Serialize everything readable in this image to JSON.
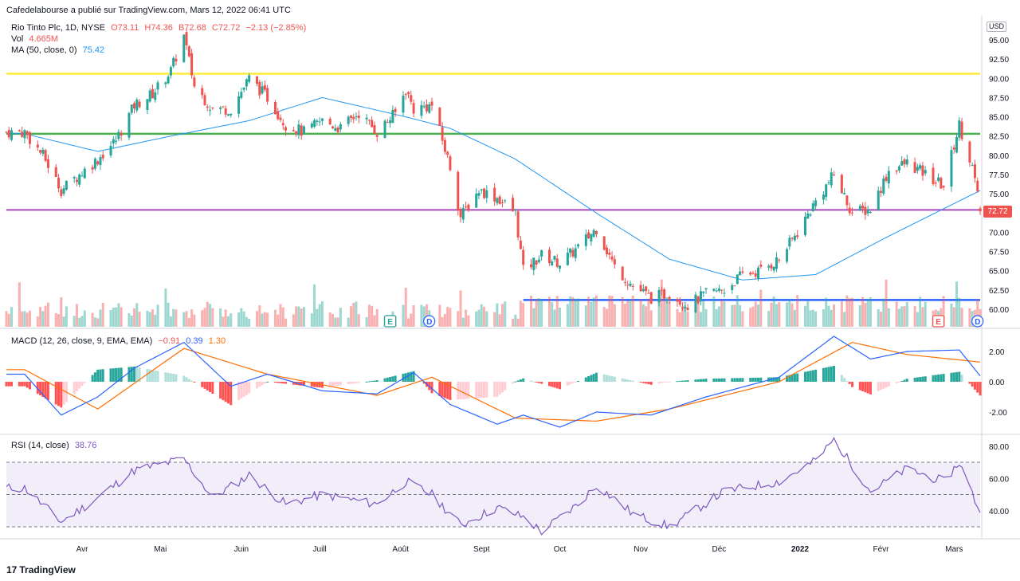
{
  "publisher_line": "Cafedelabourse a publié sur TradingView.com, Mars 12, 2022 06:41 UTC",
  "symbol": {
    "name": "Rio Tinto Plc, 1D, NYSE",
    "open": "O73.11",
    "high": "H74.36",
    "low": "B72.68",
    "close": "C72.72",
    "change": "−2.13 (−2.85%)"
  },
  "volume_legend": {
    "label": "Vol",
    "value": "4.665M"
  },
  "ma_legend": {
    "label": "MA (50, close, 0)",
    "value": "75.42"
  },
  "macd_legend": {
    "label": "MACD (12, 26, close, 9, EMA, EMA)",
    "hist": "−0.91",
    "macd": "0.39",
    "signal": "1.30"
  },
  "rsi_legend": {
    "label": "RSI (14, close)",
    "value": "38.76"
  },
  "currency": "USD",
  "last_price": "72.72",
  "brand": "TradingView",
  "colors": {
    "up": "#26a69a",
    "down": "#ef5350",
    "ma": "#2196f3",
    "macd": "#2962ff",
    "signal": "#ff6d00",
    "rsi": "#7e57c2",
    "yellow_line": "#ffeb3b",
    "green_line": "#4caf50",
    "purple_line": "#ab47bc",
    "blue_line": "#2962ff"
  },
  "chart_data": [
    {
      "type": "candlestick",
      "title": "Rio Tinto Plc, 1D, NYSE",
      "x_tick_labels": [
        "Avr",
        "Mai",
        "Juin",
        "Juill",
        "Août",
        "Sept",
        "Oct",
        "Nov",
        "Déc",
        "2022",
        "Févr",
        "Mars"
      ],
      "y_tick_labels": [
        60.0,
        62.5,
        65.0,
        67.5,
        70.0,
        72.5,
        75.0,
        77.5,
        80.0,
        82.5,
        85.0,
        87.5,
        90.0,
        92.5,
        95.0
      ],
      "ylim": [
        57.5,
        97.5
      ],
      "close_path": [
        [
          "2021-03-10",
          83
        ],
        [
          "2021-03-17",
          80
        ],
        [
          "2021-03-24",
          75.5
        ],
        [
          "2021-03-31",
          77.5
        ],
        [
          "2021-04-07",
          79.5
        ],
        [
          "2021-04-14",
          82
        ],
        [
          "2021-04-21",
          86.5
        ],
        [
          "2021-04-28",
          88
        ],
        [
          "2021-05-05",
          91
        ],
        [
          "2021-05-10",
          95.5
        ],
        [
          "2021-05-14",
          89
        ],
        [
          "2021-05-21",
          86
        ],
        [
          "2021-05-28",
          86
        ],
        [
          "2021-06-04",
          90
        ],
        [
          "2021-06-11",
          87.5
        ],
        [
          "2021-06-18",
          84
        ],
        [
          "2021-06-25",
          83
        ],
        [
          "2021-07-02",
          84.5
        ],
        [
          "2021-07-09",
          83.5
        ],
        [
          "2021-07-16",
          85.5
        ],
        [
          "2021-07-23",
          83
        ],
        [
          "2021-07-30",
          85.5
        ],
        [
          "2021-08-03",
          88.5
        ],
        [
          "2021-08-06",
          86
        ],
        [
          "2021-08-13",
          86.5
        ],
        [
          "2021-08-20",
          78.5
        ],
        [
          "2021-08-24",
          72
        ],
        [
          "2021-08-31",
          75.5
        ],
        [
          "2021-09-07",
          74.5
        ],
        [
          "2021-09-14",
          72.5
        ],
        [
          "2021-09-17",
          65
        ],
        [
          "2021-09-24",
          67
        ],
        [
          "2021-10-01",
          66
        ],
        [
          "2021-10-08",
          68
        ],
        [
          "2021-10-15",
          70.5
        ],
        [
          "2021-10-22",
          65.5
        ],
        [
          "2021-10-29",
          63
        ],
        [
          "2021-11-05",
          61.5
        ],
        [
          "2021-11-12",
          62
        ],
        [
          "2021-11-19",
          60.5
        ],
        [
          "2021-11-26",
          62
        ],
        [
          "2021-12-03",
          62.5
        ],
        [
          "2021-12-10",
          64.5
        ],
        [
          "2021-12-17",
          65
        ],
        [
          "2021-12-24",
          66.5
        ],
        [
          "2021-12-31",
          70
        ],
        [
          "2022-01-07",
          74
        ],
        [
          "2022-01-14",
          77.5
        ],
        [
          "2022-01-21",
          72.5
        ],
        [
          "2022-01-28",
          73
        ],
        [
          "2022-02-04",
          78
        ],
        [
          "2022-02-11",
          79
        ],
        [
          "2022-02-18",
          77.5
        ],
        [
          "2022-02-25",
          76
        ],
        [
          "2022-03-03",
          84
        ],
        [
          "2022-03-08",
          78.5
        ],
        [
          "2022-03-11",
          72.72
        ]
      ],
      "moving_average_50": [
        [
          "2021-03-10",
          82.8
        ],
        [
          "2021-04-07",
          80.5
        ],
        [
          "2021-05-05",
          82.5
        ],
        [
          "2021-06-04",
          84.5
        ],
        [
          "2021-07-02",
          87.5
        ],
        [
          "2021-08-03",
          85
        ],
        [
          "2021-08-20",
          83.5
        ],
        [
          "2021-09-14",
          79.5
        ],
        [
          "2021-10-15",
          72.5
        ],
        [
          "2021-11-12",
          66.5
        ],
        [
          "2021-12-10",
          63.8
        ],
        [
          "2022-01-07",
          64.5
        ],
        [
          "2022-02-04",
          69.5
        ],
        [
          "2022-03-11",
          75.42
        ]
      ],
      "horizontal_levels": [
        {
          "value": 90.6
        },
        {
          "value": 82.8
        },
        {
          "value": 72.9
        },
        {
          "value": 61.2,
          "from": "2021-09-17"
        }
      ],
      "event_markers": [
        {
          "label": "E",
          "date": "2021-07-28"
        },
        {
          "label": "D",
          "date": "2021-08-12"
        },
        {
          "label": "E",
          "date": "2022-02-23"
        },
        {
          "label": "D",
          "date": "2022-03-10"
        }
      ],
      "volume_last": "4.665M"
    },
    {
      "type": "line",
      "title": "MACD (12, 26, close, 9, EMA, EMA)",
      "y_tick_labels": [
        2.0,
        0.0,
        -2.0
      ],
      "series": [
        {
          "name": "MACD",
          "values": [
            [
              "2021-03-10",
              0.5
            ],
            [
              "2021-03-24",
              -2.2
            ],
            [
              "2021-04-07",
              -1.0
            ],
            [
              "2021-04-21",
              0.9
            ],
            [
              "2021-05-10",
              2.6
            ],
            [
              "2021-05-28",
              -0.3
            ],
            [
              "2021-06-11",
              0.5
            ],
            [
              "2021-07-02",
              -0.6
            ],
            [
              "2021-07-23",
              -0.8
            ],
            [
              "2021-08-06",
              0.6
            ],
            [
              "2021-08-20",
              -1.5
            ],
            [
              "2021-09-07",
              -2.8
            ],
            [
              "2021-09-17",
              -2.2
            ],
            [
              "2021-10-01",
              -3.0
            ],
            [
              "2021-10-15",
              -2.0
            ],
            [
              "2021-11-05",
              -2.2
            ],
            [
              "2021-11-26",
              -1.0
            ],
            [
              "2021-12-24",
              0.3
            ],
            [
              "2022-01-14",
              3.0
            ],
            [
              "2022-01-28",
              1.5
            ],
            [
              "2022-02-11",
              2.0
            ],
            [
              "2022-03-03",
              2.1
            ],
            [
              "2022-03-11",
              0.39
            ]
          ]
        },
        {
          "name": "Signal",
          "values": [
            [
              "2021-03-10",
              0.8
            ],
            [
              "2021-04-07",
              -1.8
            ],
            [
              "2021-05-10",
              2.2
            ],
            [
              "2021-06-11",
              0.5
            ],
            [
              "2021-07-23",
              -0.9
            ],
            [
              "2021-08-13",
              0.3
            ],
            [
              "2021-09-14",
              -2.4
            ],
            [
              "2021-10-15",
              -2.6
            ],
            [
              "2021-11-12",
              -1.8
            ],
            [
              "2021-12-24",
              0.0
            ],
            [
              "2022-01-21",
              2.6
            ],
            [
              "2022-02-11",
              1.8
            ],
            [
              "2022-03-11",
              1.3
            ]
          ]
        }
      ],
      "histogram_last": -0.91
    },
    {
      "type": "line",
      "title": "RSI (14, close)",
      "y_tick_labels": [
        80.0,
        60.0,
        40.0
      ],
      "bands": [
        70,
        50,
        30
      ],
      "series": [
        {
          "name": "RSI",
          "values": [
            [
              "2021-03-10",
              54
            ],
            [
              "2021-03-24",
              33
            ],
            [
              "2021-04-07",
              48
            ],
            [
              "2021-04-21",
              65
            ],
            [
              "2021-05-10",
              72
            ],
            [
              "2021-05-21",
              48
            ],
            [
              "2021-06-04",
              62
            ],
            [
              "2021-06-18",
              44
            ],
            [
              "2021-07-02",
              50
            ],
            [
              "2021-07-23",
              44
            ],
            [
              "2021-08-03",
              58
            ],
            [
              "2021-08-13",
              50
            ],
            [
              "2021-08-24",
              31
            ],
            [
              "2021-09-07",
              42
            ],
            [
              "2021-09-17",
              36
            ],
            [
              "2021-09-24",
              27
            ],
            [
              "2021-10-08",
              44
            ],
            [
              "2021-10-15",
              56
            ],
            [
              "2021-10-29",
              38
            ],
            [
              "2021-11-12",
              30
            ],
            [
              "2021-12-03",
              52
            ],
            [
              "2021-12-24",
              58
            ],
            [
              "2022-01-07",
              71
            ],
            [
              "2022-01-14",
              84
            ],
            [
              "2022-01-28",
              52
            ],
            [
              "2022-02-11",
              66
            ],
            [
              "2022-02-25",
              58
            ],
            [
              "2022-03-03",
              70
            ],
            [
              "2022-03-11",
              38.76
            ]
          ]
        }
      ]
    }
  ]
}
